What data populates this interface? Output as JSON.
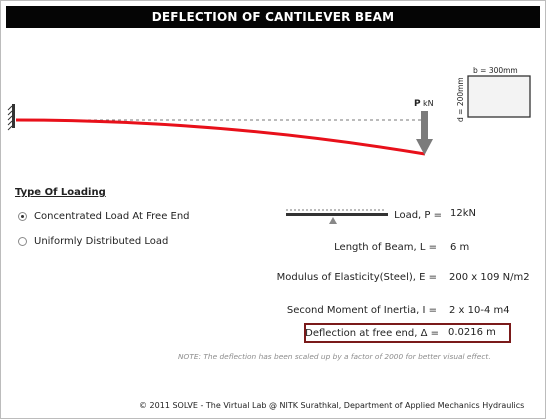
{
  "header": {
    "title": "DEFLECTION OF CANTILEVER BEAM"
  },
  "diagram": {
    "load_symbol": "P",
    "load_unit": "kN",
    "section_width_label": "b = 300mm",
    "section_depth_label": "d = 200mm"
  },
  "loading": {
    "title": "Type Of Loading",
    "options": [
      {
        "label": "Concentrated Load At Free End",
        "selected": true
      },
      {
        "label": "Uniformly Distributed Load",
        "selected": false
      }
    ]
  },
  "params": {
    "load": {
      "label": "Load, P =",
      "value": "12kN"
    },
    "length": {
      "label": "Length of Beam, L =",
      "value": "6 m"
    },
    "modulus": {
      "label": "Modulus of Elasticity(Steel), E =",
      "value": "200 x 109 N/m2"
    },
    "inertia": {
      "label": "Second Moment of Inertia, I =",
      "value": "2 x 10-4 m4"
    },
    "deflection": {
      "label": "Deflection at free end, Δ =",
      "value": "0.0216 m"
    }
  },
  "note": "NOTE: The deflection has been scaled up by a factor of 2000 for better visual effect.",
  "footer": "© 2011 SOLVE - The Virtual Lab @ NITK Surathkal, Department of Applied Mechanics Hydraulics",
  "colors": {
    "beam": "#e8101a",
    "load_arrow": "#7b7b7b",
    "result_border": "#7a1a1a"
  }
}
